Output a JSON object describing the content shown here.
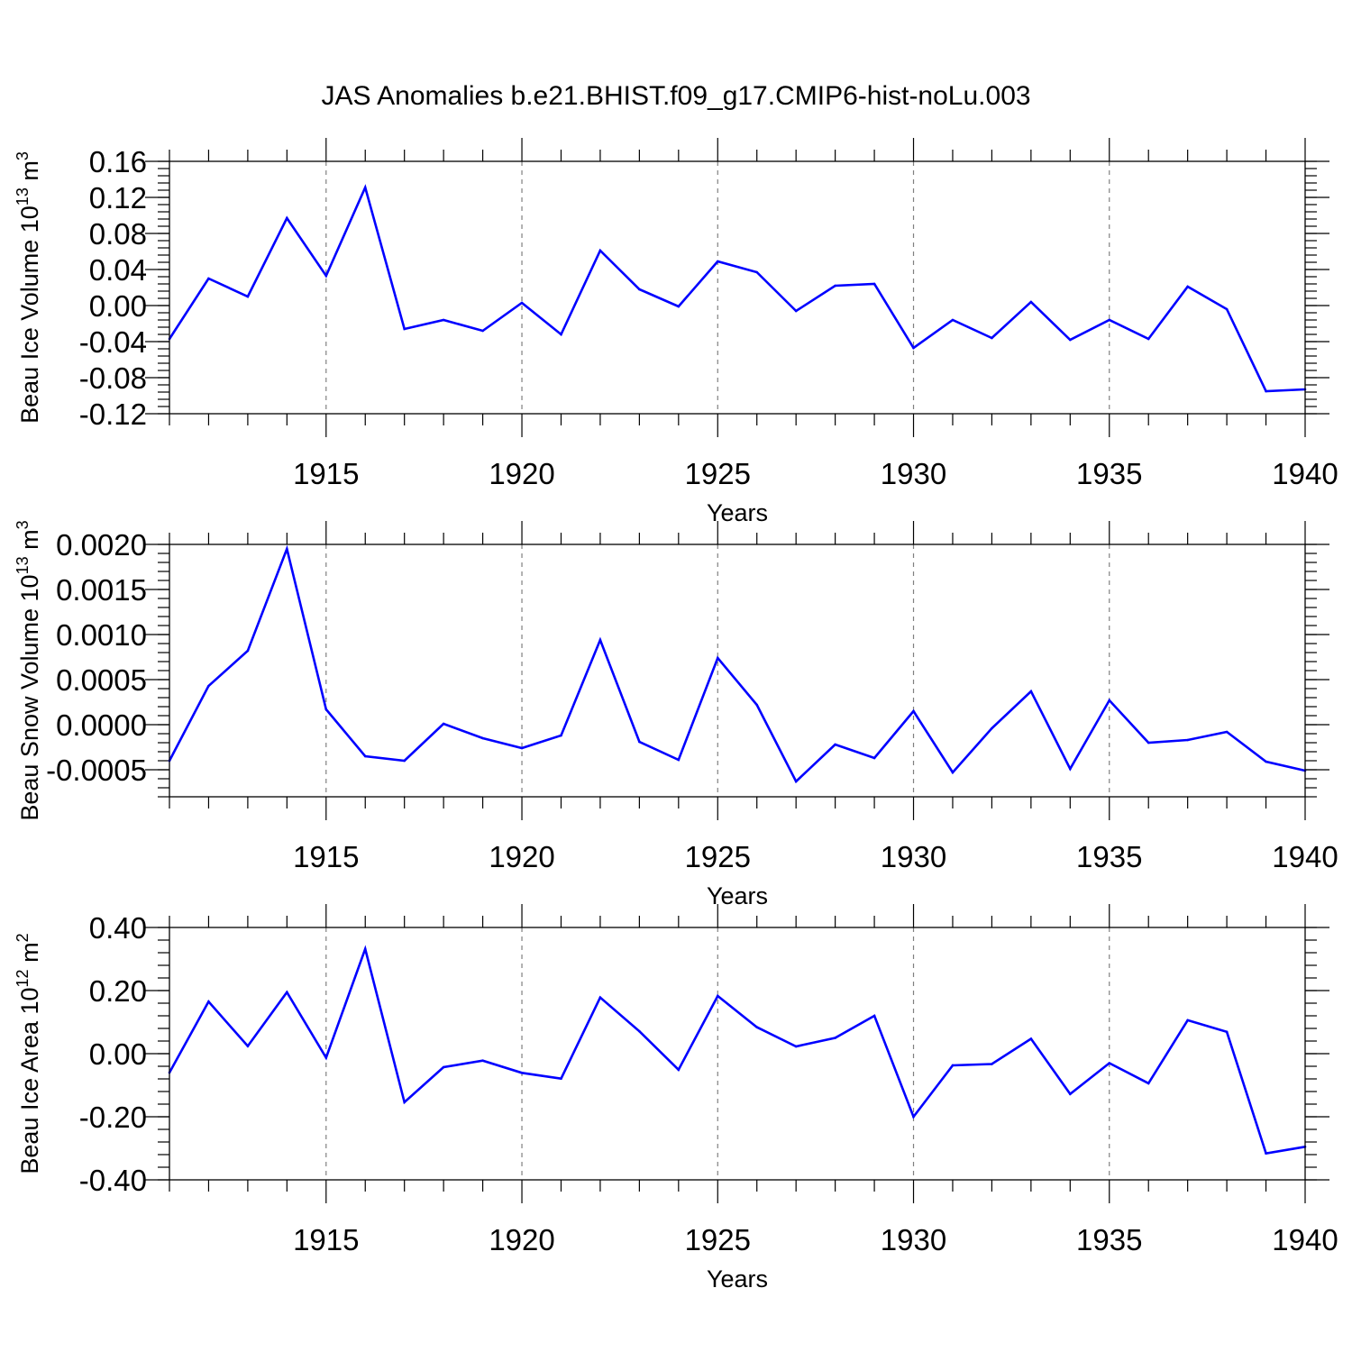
{
  "chart_data": {
    "title": "JAS Anomalies b.e21.BHIST.f09_g17.CMIP6-hist-noLu.003",
    "line_color": "#0000ff",
    "panels": [
      {
        "type": "line",
        "ylabel": "Beau Ice Volume 10",
        "ylabel_sup": "13",
        "ylabel_unit": " m",
        "ylabel_unit_sup": "3",
        "xlabel": "Years",
        "xlim": [
          1911,
          1940
        ],
        "ylim": [
          -0.12,
          0.16
        ],
        "x_major_ticks": [
          1915,
          1920,
          1925,
          1930,
          1935,
          1940
        ],
        "x_tick_labels": [
          "1915",
          "1920",
          "1925",
          "1930",
          "1935",
          "1940"
        ],
        "y_major_ticks": [
          -0.12,
          -0.08,
          -0.04,
          0.0,
          0.04,
          0.08,
          0.12,
          0.16
        ],
        "y_tick_labels": [
          "-0.12",
          "-0.08",
          "-0.04",
          "0.00",
          "0.04",
          "0.08",
          "0.12",
          "0.16"
        ],
        "y_minor_step": 0.008,
        "grid": "vertical dashed at major x ticks",
        "x": [
          1911,
          1912,
          1913,
          1914,
          1915,
          1916,
          1917,
          1918,
          1919,
          1920,
          1921,
          1922,
          1923,
          1924,
          1925,
          1926,
          1927,
          1928,
          1929,
          1930,
          1931,
          1932,
          1933,
          1934,
          1935,
          1936,
          1937,
          1938,
          1939,
          1940
        ],
        "values": [
          -0.037,
          0.03,
          0.01,
          0.097,
          0.033,
          0.131,
          -0.026,
          -0.016,
          -0.028,
          0.003,
          -0.032,
          0.061,
          0.018,
          -0.001,
          0.049,
          0.037,
          -0.006,
          0.022,
          0.024,
          -0.047,
          -0.016,
          -0.036,
          0.004,
          -0.038,
          -0.016,
          -0.037,
          0.021,
          -0.004,
          -0.095,
          -0.093
        ]
      },
      {
        "type": "line",
        "ylabel": "Beau Snow Volume 10",
        "ylabel_sup": "13",
        "ylabel_unit": " m",
        "ylabel_unit_sup": "3",
        "xlabel": "Years",
        "xlim": [
          1911,
          1940
        ],
        "ylim": [
          -0.0008,
          0.002
        ],
        "x_major_ticks": [
          1915,
          1920,
          1925,
          1930,
          1935,
          1940
        ],
        "x_tick_labels": [
          "1915",
          "1920",
          "1925",
          "1930",
          "1935",
          "1940"
        ],
        "y_major_ticks": [
          -0.0005,
          0.0,
          0.0005,
          0.001,
          0.0015,
          0.002
        ],
        "y_tick_labels": [
          "-0.0005",
          "0.0000",
          "0.0005",
          "0.0010",
          "0.0015",
          "0.0020"
        ],
        "y_minor_step": 0.0001,
        "grid": "vertical dashed at major x ticks",
        "x": [
          1911,
          1912,
          1913,
          1914,
          1915,
          1916,
          1917,
          1918,
          1919,
          1920,
          1921,
          1922,
          1923,
          1924,
          1925,
          1926,
          1927,
          1928,
          1929,
          1930,
          1931,
          1932,
          1933,
          1934,
          1935,
          1936,
          1937,
          1938,
          1939,
          1940
        ],
        "values": [
          -0.0004,
          0.00043,
          0.00082,
          0.00195,
          0.00017,
          -0.00035,
          -0.0004,
          1e-05,
          -0.00015,
          -0.00026,
          -0.00012,
          0.00094,
          -0.00019,
          -0.00039,
          0.00074,
          0.00022,
          -0.00063,
          -0.00022,
          -0.00037,
          0.00015,
          -0.00053,
          -4e-05,
          0.00037,
          -0.00049,
          0.00027,
          -0.0002,
          -0.00017,
          -8e-05,
          -0.00041,
          -0.00051
        ]
      },
      {
        "type": "line",
        "ylabel": "Beau Ice Area 10",
        "ylabel_sup": "12",
        "ylabel_unit": " m",
        "ylabel_unit_sup": "2",
        "xlabel": "Years",
        "xlim": [
          1911,
          1940
        ],
        "ylim": [
          -0.4,
          0.4
        ],
        "x_major_ticks": [
          1915,
          1920,
          1925,
          1930,
          1935,
          1940
        ],
        "x_tick_labels": [
          "1915",
          "1920",
          "1925",
          "1930",
          "1935",
          "1940"
        ],
        "y_major_ticks": [
          -0.4,
          -0.2,
          0.0,
          0.2,
          0.4
        ],
        "y_tick_labels": [
          "-0.40",
          "-0.20",
          "0.00",
          "0.20",
          "0.40"
        ],
        "y_minor_step": 0.04,
        "grid": "vertical dashed at major x ticks",
        "x": [
          1911,
          1912,
          1913,
          1914,
          1915,
          1916,
          1917,
          1918,
          1919,
          1920,
          1921,
          1922,
          1923,
          1924,
          1925,
          1926,
          1927,
          1928,
          1929,
          1930,
          1931,
          1932,
          1933,
          1934,
          1935,
          1936,
          1937,
          1938,
          1939,
          1940
        ],
        "values": [
          -0.06,
          0.165,
          0.024,
          0.195,
          -0.013,
          0.332,
          -0.154,
          -0.043,
          -0.022,
          -0.061,
          -0.079,
          0.178,
          0.071,
          -0.051,
          0.183,
          0.084,
          0.023,
          0.05,
          0.12,
          -0.2,
          -0.037,
          -0.033,
          0.047,
          -0.128,
          -0.03,
          -0.094,
          0.106,
          0.069,
          -0.316,
          -0.295
        ]
      }
    ]
  }
}
